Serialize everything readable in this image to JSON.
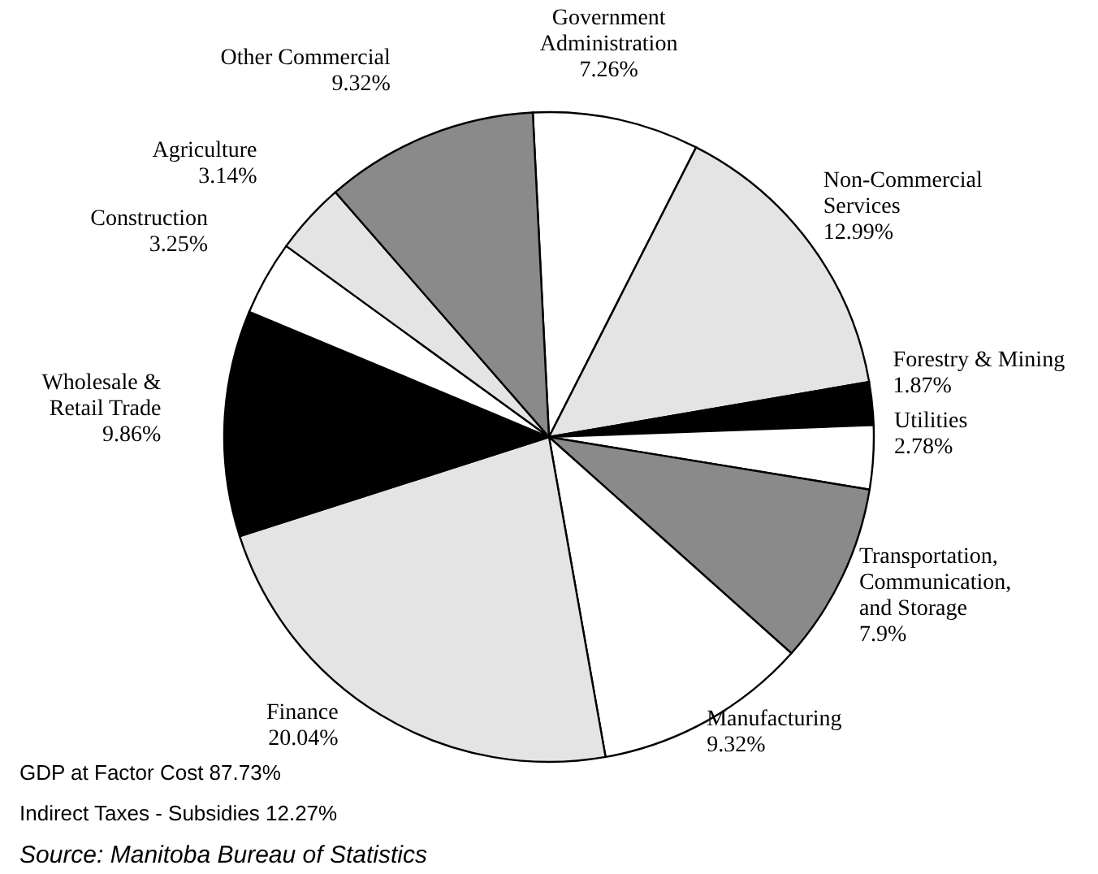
{
  "chart_data": {
    "type": "pie",
    "categories": [
      "Government Administration",
      "Non-Commercial Services",
      "Forestry & Mining",
      "Utilities",
      "Transportation, Communication, and Storage",
      "Manufacturing",
      "Finance",
      "Wholesale & Retail Trade",
      "Construction",
      "Agriculture",
      "Other Commercial"
    ],
    "values": [
      7.26,
      12.99,
      1.87,
      2.78,
      7.9,
      9.32,
      20.04,
      9.86,
      3.25,
      3.14,
      9.32
    ],
    "value_labels": [
      "7.26%",
      "12.99%",
      "1.87%",
      "2.78%",
      "7.9%",
      "9.32%",
      "20.04%",
      "9.86%",
      "3.25%",
      "3.14%",
      "9.32%"
    ],
    "colors": [
      "#ffffff",
      "#e4e4e4",
      "#000000",
      "#ffffff",
      "#8a8a8a",
      "#ffffff",
      "#e4e4e4",
      "#000000",
      "#ffffff",
      "#e4e4e4",
      "#8a8a8a"
    ],
    "annotations": [
      "GDP at Factor Cost  87.73%",
      "Indirect Taxes - Subsidies  12.27%",
      "Source: Manitoba Bureau of Statistics"
    ]
  }
}
